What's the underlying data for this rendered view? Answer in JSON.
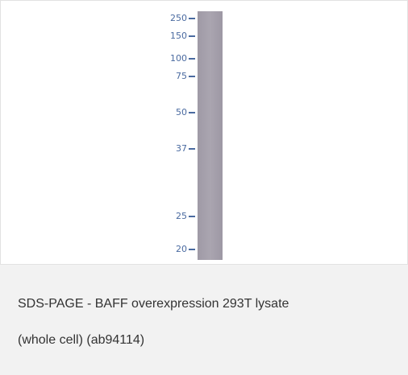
{
  "gel": {
    "markers": [
      250,
      150,
      100,
      75,
      50,
      37,
      25,
      20
    ]
  },
  "caption": {
    "lines": [
      "SDS-PAGE - BAFF overexpression 293T lysate",
      "(whole cell) (ab94114)"
    ]
  }
}
